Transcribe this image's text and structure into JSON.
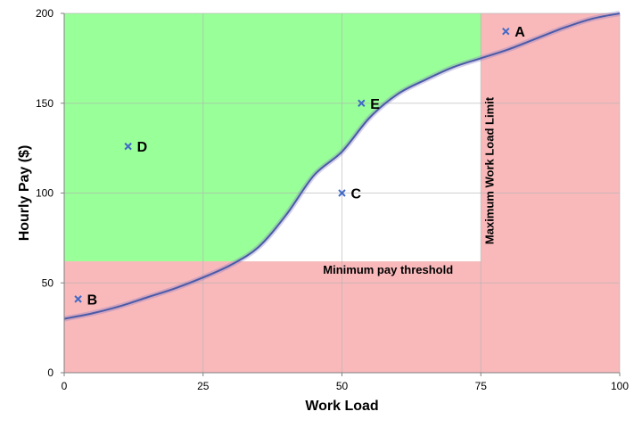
{
  "chart_data": {
    "type": "scatter",
    "xlabel": "Work Load",
    "ylabel": "Hourly Pay ($)",
    "xlim": [
      0,
      100
    ],
    "ylim": [
      0,
      200
    ],
    "x_ticks": [
      0,
      25,
      50,
      75,
      100
    ],
    "y_ticks": [
      0,
      50,
      100,
      150,
      200
    ],
    "grid": true,
    "regions": {
      "minimum_pay": 62,
      "max_work_load": 75,
      "colors": {
        "acceptable": "#99ff99",
        "unacceptable": "#f9b9bb",
        "feasible": "#ffffff"
      }
    },
    "curve": {
      "color": "#4a5aa8",
      "x": [
        0,
        5,
        10,
        15,
        20,
        25,
        30,
        35,
        40,
        45,
        50,
        55,
        60,
        65,
        70,
        75,
        80,
        85,
        90,
        95,
        100
      ],
      "y": [
        30,
        33,
        37,
        42,
        47,
        53,
        60,
        70,
        88,
        110,
        123,
        142,
        155,
        163,
        170,
        175,
        180,
        186,
        192,
        197,
        200
      ]
    },
    "points": [
      {
        "label": "A",
        "x": 79.5,
        "y": 190
      },
      {
        "label": "B",
        "x": 2.5,
        "y": 41
      },
      {
        "label": "C",
        "x": 50,
        "y": 100
      },
      {
        "label": "D",
        "x": 11.5,
        "y": 126
      },
      {
        "label": "E",
        "x": 53.5,
        "y": 150
      }
    ],
    "point_color": "#4169c8",
    "annotations": {
      "min_pay_label": "Minimum pay threshold",
      "max_work_label": "Maximum Work Load Limit"
    }
  }
}
